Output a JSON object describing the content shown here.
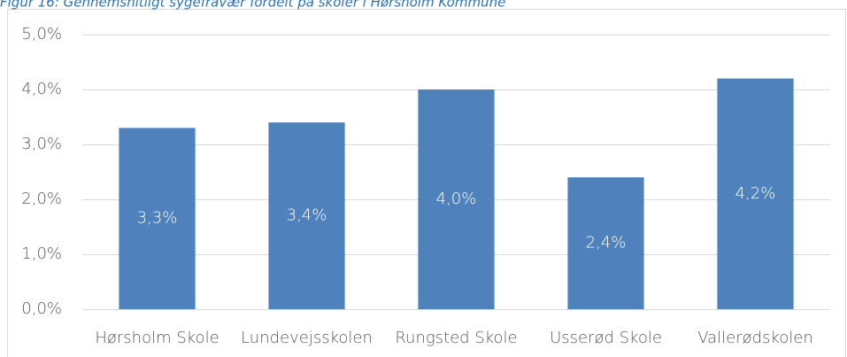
{
  "chart_data": {
    "type": "bar",
    "title": "Figur 16: Gennemsnitligt sygefravær fordelt på skoler i Hørsholm Kommune",
    "categories": [
      "Hørsholm Skole",
      "Lundevejsskolen",
      "Rungsted Skole",
      "Usserød Skole",
      "Vallerødskolen"
    ],
    "values": [
      3.3,
      3.4,
      4.0,
      2.4,
      4.2
    ],
    "value_labels": [
      "3,3%",
      "3,4%",
      "4,0%",
      "2,4%",
      "4,2%"
    ],
    "color": "#4f81bd",
    "ylim": [
      0,
      5
    ],
    "yticks": [
      {
        "value": 0,
        "label": "0,0%"
      },
      {
        "value": 1,
        "label": "1,0%"
      },
      {
        "value": 2,
        "label": "2,0%"
      },
      {
        "value": 3,
        "label": "3,0%"
      },
      {
        "value": 4,
        "label": "4,0%"
      },
      {
        "value": 5,
        "label": "5,0%"
      }
    ],
    "grid": true
  }
}
